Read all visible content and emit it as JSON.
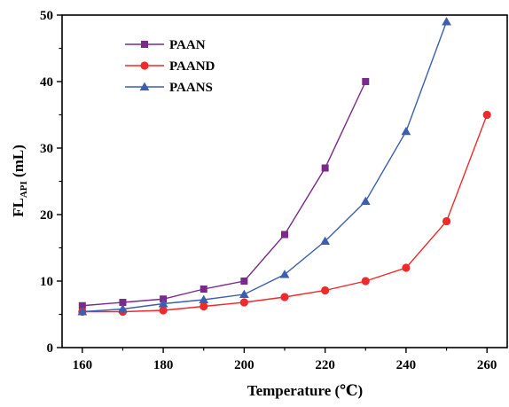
{
  "chart_data": {
    "type": "line",
    "xlabel": "Temperature (℃)",
    "ylabel": {
      "main": "FL",
      "subscript": "API",
      "unit": " (mL)"
    },
    "xlim": [
      155,
      265
    ],
    "ylim": [
      0,
      50
    ],
    "xticks": [
      160,
      180,
      200,
      220,
      240,
      260
    ],
    "yticks": [
      0,
      10,
      20,
      30,
      40,
      50
    ],
    "grid": false,
    "legend_position": "top-left",
    "series": [
      {
        "name": "PAAN",
        "color": "#7a2a8a",
        "marker": "square",
        "x": [
          160,
          170,
          180,
          190,
          200,
          210,
          220,
          230
        ],
        "y": [
          6.3,
          6.8,
          7.3,
          8.8,
          10,
          17,
          27,
          40
        ]
      },
      {
        "name": "PAAND",
        "color": "#ee2a2a",
        "marker": "circle",
        "x": [
          160,
          170,
          180,
          190,
          200,
          210,
          220,
          230,
          240,
          250,
          260
        ],
        "y": [
          5.4,
          5.4,
          5.6,
          6.2,
          6.8,
          7.6,
          8.6,
          10,
          12,
          19,
          35
        ]
      },
      {
        "name": "PAANS",
        "color": "#3b5fae",
        "marker": "triangle",
        "x": [
          160,
          170,
          180,
          190,
          200,
          210,
          220,
          230,
          240,
          250
        ],
        "y": [
          5.4,
          5.8,
          6.6,
          7.2,
          8,
          11,
          16,
          22,
          32.5,
          49
        ]
      }
    ]
  }
}
